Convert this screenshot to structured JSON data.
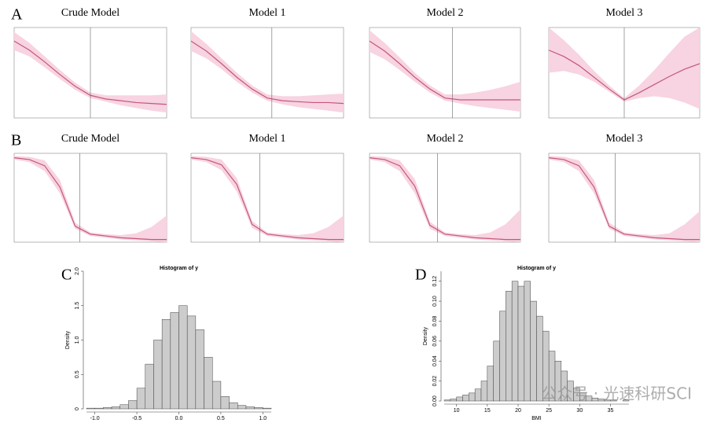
{
  "row_labels": [
    "A",
    "B"
  ],
  "watermark": "公众号 · 光速科研SCI",
  "chart_data": [
    {
      "type": "line",
      "panel_row": 0,
      "title": "Crude Model",
      "xlim": [
        0,
        10
      ],
      "ylim": [
        0,
        1
      ],
      "vline": 5,
      "color": "#c2587a",
      "band_color": "#f8d3e1",
      "x": [
        0,
        1,
        2,
        3,
        4,
        5,
        6,
        7,
        8,
        9,
        10
      ],
      "values": [
        0.85,
        0.75,
        0.62,
        0.48,
        0.35,
        0.25,
        0.21,
        0.19,
        0.17,
        0.16,
        0.15
      ],
      "lower": [
        0.75,
        0.68,
        0.56,
        0.43,
        0.31,
        0.22,
        0.18,
        0.14,
        0.11,
        0.08,
        0.06
      ],
      "upper": [
        0.95,
        0.83,
        0.68,
        0.53,
        0.39,
        0.28,
        0.25,
        0.25,
        0.25,
        0.25,
        0.26
      ]
    },
    {
      "type": "line",
      "panel_row": 0,
      "title": "Model 1",
      "xlim": [
        0,
        10
      ],
      "ylim": [
        0,
        1
      ],
      "vline": 5.3,
      "color": "#c2587a",
      "band_color": "#f8d3e1",
      "x": [
        0,
        1,
        2,
        3,
        4,
        5,
        6,
        7,
        8,
        9,
        10
      ],
      "values": [
        0.85,
        0.74,
        0.6,
        0.45,
        0.32,
        0.22,
        0.19,
        0.18,
        0.17,
        0.17,
        0.16
      ],
      "lower": [
        0.74,
        0.66,
        0.54,
        0.4,
        0.28,
        0.19,
        0.15,
        0.12,
        0.1,
        0.08,
        0.06
      ],
      "upper": [
        0.96,
        0.82,
        0.66,
        0.5,
        0.36,
        0.26,
        0.24,
        0.24,
        0.25,
        0.26,
        0.27
      ]
    },
    {
      "type": "line",
      "panel_row": 0,
      "title": "Model 2",
      "xlim": [
        0,
        10
      ],
      "ylim": [
        0,
        1
      ],
      "vline": 5.5,
      "color": "#c2587a",
      "band_color": "#f8d3e1",
      "x": [
        0,
        1,
        2,
        3,
        4,
        5,
        6,
        7,
        8,
        9,
        10
      ],
      "values": [
        0.85,
        0.74,
        0.6,
        0.45,
        0.32,
        0.22,
        0.2,
        0.2,
        0.2,
        0.2,
        0.2
      ],
      "lower": [
        0.73,
        0.65,
        0.53,
        0.4,
        0.28,
        0.19,
        0.16,
        0.13,
        0.11,
        0.09,
        0.07
      ],
      "upper": [
        0.97,
        0.83,
        0.67,
        0.5,
        0.36,
        0.26,
        0.26,
        0.28,
        0.31,
        0.35,
        0.4
      ]
    },
    {
      "type": "line",
      "panel_row": 0,
      "title": "Model 3",
      "xlim": [
        0,
        10
      ],
      "ylim": [
        0,
        1
      ],
      "vline": 5,
      "color": "#c2587a",
      "band_color": "#f8d3e1",
      "x": [
        0,
        1,
        2,
        3,
        4,
        5,
        6,
        7,
        8,
        9,
        10
      ],
      "values": [
        0.75,
        0.68,
        0.58,
        0.45,
        0.32,
        0.2,
        0.28,
        0.37,
        0.46,
        0.54,
        0.6
      ],
      "lower": [
        0.5,
        0.52,
        0.48,
        0.4,
        0.29,
        0.18,
        0.22,
        0.24,
        0.22,
        0.17,
        0.1
      ],
      "upper": [
        1.0,
        0.86,
        0.7,
        0.52,
        0.36,
        0.22,
        0.36,
        0.53,
        0.72,
        0.9,
        1.0
      ]
    },
    {
      "type": "line",
      "panel_row": 1,
      "title": "Crude Model",
      "xlim": [
        0,
        10
      ],
      "ylim": [
        0,
        1
      ],
      "vline": 4.3,
      "color": "#c2587a",
      "band_color": "#f8d3e1",
      "x": [
        0,
        1,
        2,
        3,
        4,
        5,
        6,
        7,
        8,
        9,
        10
      ],
      "values": [
        0.95,
        0.93,
        0.86,
        0.62,
        0.18,
        0.09,
        0.07,
        0.05,
        0.04,
        0.03,
        0.03
      ],
      "lower": [
        0.93,
        0.9,
        0.8,
        0.55,
        0.15,
        0.07,
        0.05,
        0.03,
        0.02,
        0.01,
        0.0
      ],
      "upper": [
        0.97,
        0.96,
        0.92,
        0.7,
        0.22,
        0.11,
        0.09,
        0.08,
        0.1,
        0.17,
        0.3
      ]
    },
    {
      "type": "line",
      "panel_row": 1,
      "title": "Model 1",
      "xlim": [
        0,
        10
      ],
      "ylim": [
        0,
        1
      ],
      "vline": 4.5,
      "color": "#c2587a",
      "band_color": "#f8d3e1",
      "x": [
        0,
        1,
        2,
        3,
        4,
        5,
        6,
        7,
        8,
        9,
        10
      ],
      "values": [
        0.95,
        0.93,
        0.87,
        0.65,
        0.2,
        0.09,
        0.07,
        0.05,
        0.04,
        0.03,
        0.03
      ],
      "lower": [
        0.93,
        0.9,
        0.81,
        0.57,
        0.16,
        0.07,
        0.05,
        0.03,
        0.02,
        0.01,
        0.0
      ],
      "upper": [
        0.97,
        0.96,
        0.93,
        0.72,
        0.24,
        0.11,
        0.09,
        0.08,
        0.1,
        0.17,
        0.3
      ]
    },
    {
      "type": "line",
      "panel_row": 1,
      "title": "Model 2",
      "xlim": [
        0,
        10
      ],
      "ylim": [
        0,
        1
      ],
      "vline": 4.5,
      "color": "#c2587a",
      "band_color": "#f8d3e1",
      "x": [
        0,
        1,
        2,
        3,
        4,
        5,
        6,
        7,
        8,
        9,
        10
      ],
      "values": [
        0.95,
        0.93,
        0.86,
        0.63,
        0.19,
        0.09,
        0.07,
        0.05,
        0.04,
        0.03,
        0.03
      ],
      "lower": [
        0.93,
        0.9,
        0.8,
        0.55,
        0.15,
        0.07,
        0.05,
        0.03,
        0.02,
        0.01,
        0.0
      ],
      "upper": [
        0.97,
        0.96,
        0.92,
        0.71,
        0.23,
        0.11,
        0.09,
        0.08,
        0.11,
        0.2,
        0.37
      ]
    },
    {
      "type": "line",
      "panel_row": 1,
      "title": "Model 3",
      "xlim": [
        0,
        10
      ],
      "ylim": [
        0,
        1
      ],
      "vline": 4.4,
      "color": "#c2587a",
      "band_color": "#f8d3e1",
      "x": [
        0,
        1,
        2,
        3,
        4,
        5,
        6,
        7,
        8,
        9,
        10
      ],
      "values": [
        0.95,
        0.93,
        0.86,
        0.62,
        0.18,
        0.09,
        0.07,
        0.05,
        0.04,
        0.03,
        0.03
      ],
      "lower": [
        0.93,
        0.9,
        0.8,
        0.55,
        0.15,
        0.07,
        0.05,
        0.03,
        0.02,
        0.01,
        0.0
      ],
      "upper": [
        0.97,
        0.96,
        0.92,
        0.7,
        0.22,
        0.11,
        0.09,
        0.08,
        0.1,
        0.2,
        0.35
      ]
    },
    {
      "type": "histogram",
      "panel": "C",
      "title": "Histogram of y",
      "ylabel": "Density",
      "color": "#cccccc",
      "bins": [
        -1.1,
        -1.0,
        -0.9,
        -0.8,
        -0.7,
        -0.6,
        -0.5,
        -0.4,
        -0.3,
        -0.2,
        -0.1,
        0.0,
        0.1,
        0.2,
        0.3,
        0.4,
        0.5,
        0.6,
        0.7,
        0.8,
        0.9,
        1.0,
        1.1
      ],
      "counts": [
        0.01,
        0.01,
        0.02,
        0.03,
        0.06,
        0.12,
        0.3,
        0.65,
        1.0,
        1.3,
        1.4,
        1.5,
        1.35,
        1.15,
        0.75,
        0.4,
        0.18,
        0.09,
        0.05,
        0.03,
        0.02,
        0.01
      ],
      "xlim": [
        -1.1,
        1.1
      ],
      "ylim": [
        0,
        2.0
      ],
      "xticks": [
        {
          "value": -1,
          "label": "-1.0"
        },
        -0.5,
        {
          "value": 0,
          "label": "0.0"
        },
        0.5,
        {
          "value": 1,
          "label": "1.0"
        }
      ],
      "yticks": [
        0,
        0.5,
        {
          "value": 1,
          "label": "1.0"
        },
        1.5,
        {
          "value": 2,
          "label": "2.0"
        }
      ]
    },
    {
      "type": "histogram",
      "panel": "D",
      "title": "Histogram of y",
      "xlabel": "BMI",
      "ylabel": "Density",
      "color": "#cccccc",
      "bins": [
        8,
        9,
        10,
        11,
        12,
        13,
        14,
        15,
        16,
        17,
        18,
        19,
        20,
        21,
        22,
        23,
        24,
        25,
        26,
        27,
        28,
        29,
        30,
        31,
        32,
        33,
        34,
        35,
        36,
        37,
        38
      ],
      "counts": [
        0.001,
        0.002,
        0.004,
        0.006,
        0.008,
        0.012,
        0.02,
        0.035,
        0.06,
        0.09,
        0.11,
        0.12,
        0.115,
        0.12,
        0.1,
        0.085,
        0.07,
        0.05,
        0.04,
        0.03,
        0.02,
        0.013,
        0.008,
        0.005,
        0.003,
        0.002,
        0.001,
        0.001,
        0,
        0.001
      ],
      "xlim": [
        8,
        38
      ],
      "ylim": [
        0,
        0.13
      ],
      "xticks": [
        10,
        15,
        20,
        25,
        30,
        35
      ],
      "yticks": [
        {
          "value": 0,
          "label": "0.00"
        },
        0.02,
        0.04,
        0.06,
        0.08,
        {
          "value": 0.1,
          "label": "0.10"
        },
        0.12
      ]
    }
  ]
}
